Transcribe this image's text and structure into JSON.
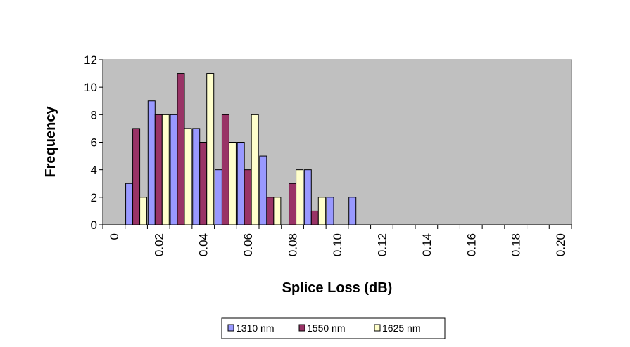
{
  "chart_data": {
    "type": "bar",
    "title": "",
    "xlabel": "Splice Loss (dB)",
    "ylabel": "Frequency",
    "ylim": [
      0,
      12
    ],
    "yticks": [
      "0",
      "2",
      "4",
      "6",
      "8",
      "10",
      "12"
    ],
    "xticks": [
      "0",
      "0.02",
      "0.04",
      "0.06",
      "0.08",
      "0.10",
      "0.12",
      "0.14",
      "0.16",
      "0.18",
      "0.20"
    ],
    "categories": [
      "0.01",
      "0.02",
      "0.03",
      "0.04",
      "0.05",
      "0.06",
      "0.07",
      "0.08",
      "0.09",
      "0.10",
      "0.11"
    ],
    "series": [
      {
        "name": "1310 nm",
        "color": "#9999ff",
        "values": [
          3,
          9,
          8,
          7,
          4,
          6,
          5,
          0,
          4,
          2,
          2
        ]
      },
      {
        "name": "1550 nm",
        "color": "#993366",
        "values": [
          7,
          8,
          11,
          6,
          8,
          4,
          2,
          3,
          1,
          0,
          0
        ]
      },
      {
        "name": "1625 nm",
        "color": "#ffffcc",
        "values": [
          2,
          8,
          7,
          11,
          6,
          8,
          2,
          4,
          2,
          0,
          0
        ]
      }
    ],
    "grid": false,
    "legend_position": "bottom",
    "plot_background": "#c0c0c0"
  }
}
